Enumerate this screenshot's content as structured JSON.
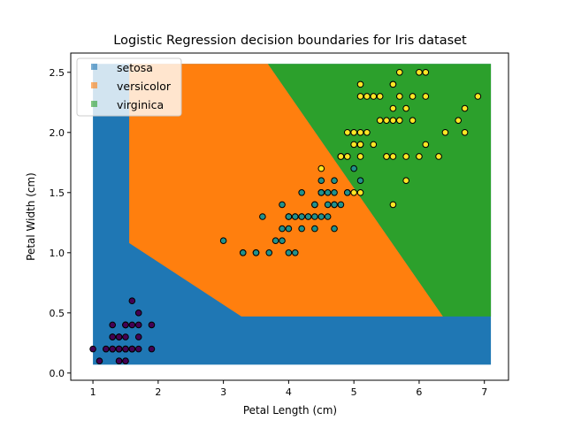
{
  "chart_data": {
    "type": "scatter",
    "title": "Logistic Regression decision boundaries for Iris dataset",
    "xlabel": "Petal Length (cm)",
    "ylabel": "Petal Width (cm)",
    "xlim": [
      0.66,
      7.37
    ],
    "ylim": [
      -0.06,
      2.66
    ],
    "xticks": [
      "1",
      "2",
      "3",
      "4",
      "5",
      "6",
      "7"
    ],
    "yticks": [
      "0.0",
      "0.5",
      "1.0",
      "1.5",
      "2.0",
      "2.5"
    ],
    "legend_position": "top-left",
    "colors": {
      "setosa": "#1f77b4",
      "versicolor": "#ff7f0e",
      "virginica": "#2ca02c",
      "pt_setosa": "#440154",
      "pt_versicolor": "#21918c",
      "pt_virginica": "#fde725"
    },
    "regions": [
      {
        "name": "setosa",
        "polygon": [
          [
            1.0,
            0.07
          ],
          [
            7.1,
            0.07
          ],
          [
            7.1,
            2.57
          ],
          [
            1.0,
            2.57
          ]
        ]
      },
      {
        "name": "versicolor",
        "polygon": [
          [
            1.556,
            2.57
          ],
          [
            3.683,
            2.57
          ],
          [
            6.366,
            0.47
          ],
          [
            3.276,
            0.47
          ],
          [
            1.556,
            1.08
          ]
        ]
      },
      {
        "name": "virginica",
        "polygon": [
          [
            3.683,
            2.57
          ],
          [
            7.1,
            2.57
          ],
          [
            7.1,
            0.47
          ],
          [
            6.366,
            0.47
          ]
        ]
      }
    ],
    "series": [
      {
        "name": "setosa",
        "points": [
          [
            1.4,
            0.2
          ],
          [
            1.4,
            0.2
          ],
          [
            1.3,
            0.2
          ],
          [
            1.5,
            0.2
          ],
          [
            1.4,
            0.2
          ],
          [
            1.7,
            0.4
          ],
          [
            1.4,
            0.3
          ],
          [
            1.5,
            0.2
          ],
          [
            1.4,
            0.2
          ],
          [
            1.5,
            0.1
          ],
          [
            1.5,
            0.2
          ],
          [
            1.6,
            0.2
          ],
          [
            1.4,
            0.1
          ],
          [
            1.1,
            0.1
          ],
          [
            1.2,
            0.2
          ],
          [
            1.5,
            0.4
          ],
          [
            1.3,
            0.4
          ],
          [
            1.4,
            0.3
          ],
          [
            1.7,
            0.3
          ],
          [
            1.5,
            0.3
          ],
          [
            1.7,
            0.2
          ],
          [
            1.5,
            0.4
          ],
          [
            1.0,
            0.2
          ],
          [
            1.7,
            0.5
          ],
          [
            1.9,
            0.2
          ],
          [
            1.6,
            0.2
          ],
          [
            1.6,
            0.4
          ],
          [
            1.5,
            0.2
          ],
          [
            1.4,
            0.2
          ],
          [
            1.6,
            0.2
          ],
          [
            1.6,
            0.2
          ],
          [
            1.5,
            0.4
          ],
          [
            1.5,
            0.1
          ],
          [
            1.4,
            0.2
          ],
          [
            1.5,
            0.2
          ],
          [
            1.2,
            0.2
          ],
          [
            1.3,
            0.2
          ],
          [
            1.4,
            0.1
          ],
          [
            1.3,
            0.2
          ],
          [
            1.5,
            0.2
          ],
          [
            1.3,
            0.3
          ],
          [
            1.3,
            0.3
          ],
          [
            1.3,
            0.2
          ],
          [
            1.6,
            0.6
          ],
          [
            1.9,
            0.4
          ],
          [
            1.4,
            0.3
          ],
          [
            1.6,
            0.2
          ],
          [
            1.4,
            0.2
          ],
          [
            1.5,
            0.2
          ],
          [
            1.4,
            0.2
          ]
        ]
      },
      {
        "name": "versicolor",
        "points": [
          [
            4.7,
            1.4
          ],
          [
            4.5,
            1.5
          ],
          [
            4.9,
            1.5
          ],
          [
            4.0,
            1.3
          ],
          [
            4.6,
            1.5
          ],
          [
            4.5,
            1.3
          ],
          [
            4.7,
            1.6
          ],
          [
            3.3,
            1.0
          ],
          [
            4.6,
            1.3
          ],
          [
            3.9,
            1.4
          ],
          [
            3.5,
            1.0
          ],
          [
            4.2,
            1.5
          ],
          [
            4.0,
            1.0
          ],
          [
            4.7,
            1.4
          ],
          [
            3.6,
            1.3
          ],
          [
            4.4,
            1.4
          ],
          [
            4.5,
            1.5
          ],
          [
            4.1,
            1.0
          ],
          [
            4.5,
            1.5
          ],
          [
            3.9,
            1.1
          ],
          [
            4.8,
            1.8
          ],
          [
            4.0,
            1.3
          ],
          [
            4.9,
            1.5
          ],
          [
            4.7,
            1.2
          ],
          [
            4.3,
            1.3
          ],
          [
            4.4,
            1.4
          ],
          [
            4.8,
            1.4
          ],
          [
            5.0,
            1.7
          ],
          [
            4.5,
            1.5
          ],
          [
            3.5,
            1.0
          ],
          [
            3.8,
            1.1
          ],
          [
            3.7,
            1.0
          ],
          [
            3.9,
            1.2
          ],
          [
            5.1,
            1.6
          ],
          [
            4.5,
            1.5
          ],
          [
            4.5,
            1.6
          ],
          [
            4.7,
            1.5
          ],
          [
            4.4,
            1.3
          ],
          [
            4.1,
            1.3
          ],
          [
            4.0,
            1.3
          ],
          [
            4.4,
            1.2
          ],
          [
            4.6,
            1.4
          ],
          [
            4.0,
            1.2
          ],
          [
            3.3,
            1.0
          ],
          [
            4.2,
            1.3
          ],
          [
            4.2,
            1.2
          ],
          [
            4.2,
            1.3
          ],
          [
            4.3,
            1.3
          ],
          [
            3.0,
            1.1
          ],
          [
            4.1,
            1.3
          ]
        ]
      },
      {
        "name": "virginica",
        "points": [
          [
            6.0,
            2.5
          ],
          [
            5.1,
            1.9
          ],
          [
            5.9,
            2.1
          ],
          [
            5.6,
            1.8
          ],
          [
            5.8,
            2.2
          ],
          [
            6.6,
            2.1
          ],
          [
            4.5,
            1.7
          ],
          [
            6.3,
            1.8
          ],
          [
            5.8,
            1.8
          ],
          [
            6.1,
            2.5
          ],
          [
            5.1,
            2.0
          ],
          [
            5.3,
            1.9
          ],
          [
            5.5,
            2.1
          ],
          [
            5.0,
            2.0
          ],
          [
            5.1,
            2.4
          ],
          [
            5.3,
            2.3
          ],
          [
            5.5,
            1.8
          ],
          [
            6.7,
            2.2
          ],
          [
            6.9,
            2.3
          ],
          [
            5.0,
            1.5
          ],
          [
            5.7,
            2.3
          ],
          [
            4.9,
            2.0
          ],
          [
            6.7,
            2.0
          ],
          [
            4.9,
            1.8
          ],
          [
            5.7,
            2.1
          ],
          [
            6.0,
            1.8
          ],
          [
            4.8,
            1.8
          ],
          [
            4.9,
            1.8
          ],
          [
            5.6,
            2.1
          ],
          [
            5.8,
            1.6
          ],
          [
            6.1,
            1.9
          ],
          [
            6.4,
            2.0
          ],
          [
            5.6,
            2.2
          ],
          [
            5.1,
            1.5
          ],
          [
            5.6,
            1.4
          ],
          [
            6.1,
            2.3
          ],
          [
            5.6,
            2.4
          ],
          [
            5.5,
            1.8
          ],
          [
            4.8,
            1.8
          ],
          [
            5.4,
            2.1
          ],
          [
            5.6,
            2.4
          ],
          [
            5.1,
            2.3
          ],
          [
            5.1,
            1.9
          ],
          [
            5.9,
            2.3
          ],
          [
            5.7,
            2.5
          ],
          [
            5.2,
            2.3
          ],
          [
            5.0,
            1.9
          ],
          [
            5.2,
            2.0
          ],
          [
            5.4,
            2.3
          ],
          [
            5.1,
            1.8
          ]
        ]
      }
    ],
    "legend": [
      "setosa",
      "versicolor",
      "virginica"
    ]
  }
}
